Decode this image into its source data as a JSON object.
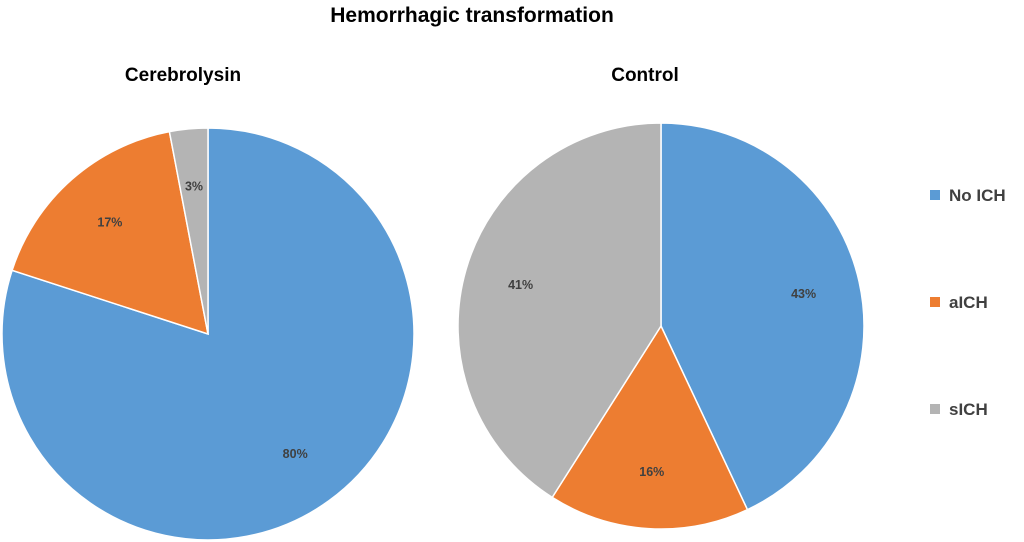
{
  "title": "Hemorrhagic transformation",
  "legend": {
    "placement": "right",
    "items": [
      "No ICH",
      "aICH",
      "sICH"
    ]
  },
  "colors": {
    "No ICH": "#5b9bd5",
    "aICH": "#ed7d31",
    "sICH": "#b4b4b4"
  },
  "chart_data": [
    {
      "type": "pie",
      "title": "Cerebrolysin",
      "categories": [
        "No ICH",
        "aICH",
        "sICH"
      ],
      "values": [
        80,
        17,
        3
      ],
      "labels": [
        "80%",
        "17%",
        "3%"
      ]
    },
    {
      "type": "pie",
      "title": "Control",
      "categories": [
        "No ICH",
        "aICH",
        "sICH"
      ],
      "values": [
        43,
        16,
        41
      ],
      "labels": [
        "43%",
        "16%",
        "41%"
      ]
    }
  ]
}
